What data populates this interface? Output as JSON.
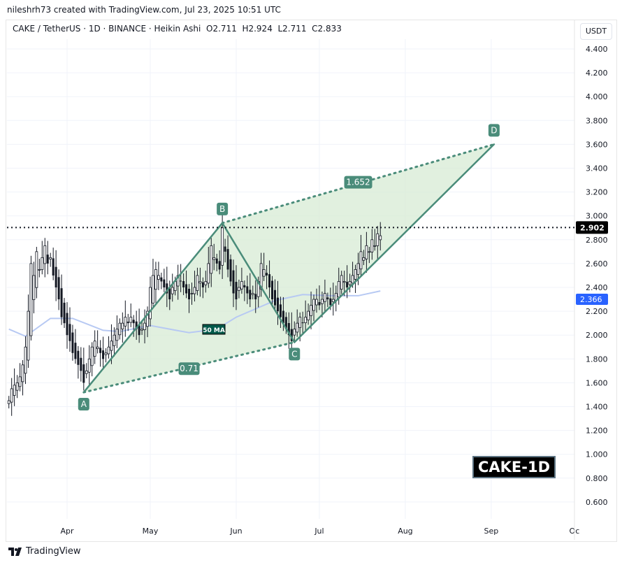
{
  "header": {
    "attribution": "nileshrh73 created with TradingView.com, Jul 23, 2025 10:51 UTC"
  },
  "legend": {
    "symbol": "CAKE / TetherUS · 1D · BINANCE · Heikin Ashi",
    "open": "O2.711",
    "high": "H2.924",
    "low": "L2.711",
    "close": "C2.833"
  },
  "axis": {
    "unit": "USDT"
  },
  "badge": "CAKE-1D",
  "footer": {
    "logo": "TradingView"
  },
  "colors": {
    "pattern": "#4a8c7a",
    "fill": "#d7ebd4",
    "ma": "#b7c9f3",
    "candle": "#131722",
    "ma_label": "#2962ff"
  },
  "chart_data": {
    "type": "candlestick",
    "chart_style": "Heikin Ashi",
    "start_date": "2025-03-11",
    "closes": [
      1.45,
      1.55,
      1.58,
      1.6,
      1.65,
      1.75,
      1.9,
      2.2,
      2.6,
      2.5,
      2.7,
      2.55,
      2.65,
      2.75,
      2.6,
      2.65,
      2.5,
      2.4,
      2.3,
      2.15,
      2.1,
      2.0,
      1.95,
      1.85,
      1.8,
      1.75,
      1.7,
      1.6,
      1.7,
      1.8,
      1.9,
      1.95,
      1.9,
      1.85,
      1.8,
      1.85,
      1.9,
      1.95,
      2.0,
      2.05,
      2.1,
      2.1,
      2.15,
      2.1,
      2.15,
      2.1,
      2.05,
      2.0,
      2.05,
      2.1,
      2.2,
      2.4,
      2.5,
      2.55,
      2.5,
      2.45,
      2.4,
      2.35,
      2.3,
      2.4,
      2.45,
      2.5,
      2.45,
      2.4,
      2.35,
      2.3,
      2.35,
      2.4,
      2.5,
      2.45,
      2.4,
      2.45,
      2.6,
      2.75,
      2.65,
      2.6,
      2.55,
      2.9,
      2.7,
      2.55,
      2.45,
      2.35,
      2.3,
      2.4,
      2.45,
      2.4,
      2.35,
      2.3,
      2.35,
      2.3,
      2.45,
      2.6,
      2.55,
      2.5,
      2.4,
      2.3,
      2.25,
      2.2,
      2.15,
      2.1,
      2.05,
      2.0,
      1.95,
      2.05,
      2.1,
      2.15,
      2.1,
      2.15,
      2.2,
      2.25,
      2.3,
      2.3,
      2.25,
      2.3,
      2.35,
      2.3,
      2.25,
      2.3,
      2.35,
      2.45,
      2.5,
      2.45,
      2.4,
      2.45,
      2.5,
      2.55,
      2.6,
      2.7,
      2.65,
      2.75,
      2.7,
      2.8,
      2.75,
      2.85,
      2.833
    ],
    "ma": {
      "label": "50 MA",
      "points": [
        [
          "2025-03-11",
          2.05
        ],
        [
          "2025-03-17",
          1.99
        ],
        [
          "2025-03-26",
          2.14
        ],
        [
          "2025-04-03",
          2.14
        ],
        [
          "2025-04-14",
          2.04
        ],
        [
          "2025-04-20",
          2.03
        ],
        [
          "2025-05-01",
          2.08
        ],
        [
          "2025-05-15",
          2.02
        ],
        [
          "2025-05-25",
          2.05
        ],
        [
          "2025-06-01",
          2.15
        ],
        [
          "2025-06-15",
          2.29
        ],
        [
          "2025-06-25",
          2.34
        ],
        [
          "2025-07-05",
          2.33
        ],
        [
          "2025-07-15",
          2.33
        ],
        [
          "2025-07-23",
          2.37
        ]
      ]
    },
    "pattern": {
      "points": [
        {
          "label": "A",
          "date": "2025-04-07",
          "price": 1.52
        },
        {
          "label": "B",
          "date": "2025-05-27",
          "price": 2.94
        },
        {
          "label": "C",
          "date": "2025-06-22",
          "price": 1.94
        },
        {
          "label": "D",
          "date": "2025-09-02",
          "price": 3.6
        }
      ],
      "ratios": [
        {
          "label": "0.71"
        },
        {
          "label": "1.652"
        }
      ]
    },
    "last_price": {
      "value": "2.902",
      "price": 2.902
    },
    "ma_last": {
      "value": "2.366",
      "price": 2.366
    },
    "yticks": [
      "4.400",
      "4.200",
      "4.000",
      "3.800",
      "3.600",
      "3.400",
      "3.200",
      "3.000",
      "2.800",
      "2.600",
      "2.400",
      "2.200",
      "2.000",
      "1.800",
      "1.600",
      "1.400",
      "1.200",
      "1.000",
      "0.800",
      "0.600"
    ],
    "xticks": [
      {
        "label": "Apr",
        "date": "2025-04-01"
      },
      {
        "label": "May",
        "date": "2025-05-01"
      },
      {
        "label": "Jun",
        "date": "2025-06-01"
      },
      {
        "label": "Jul",
        "date": "2025-07-01"
      },
      {
        "label": "Aug",
        "date": "2025-08-01"
      },
      {
        "label": "Sep",
        "date": "2025-09-01"
      },
      {
        "label": "Oc",
        "date": "2025-10-01"
      }
    ],
    "ylim": [
      0.5,
      4.5
    ],
    "grid": true
  }
}
